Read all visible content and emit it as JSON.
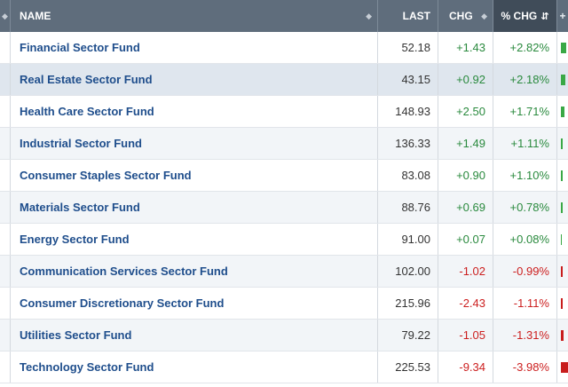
{
  "header": {
    "name": "NAME",
    "last": "LAST",
    "chg": "CHG",
    "pct_chg": "% CHG",
    "sort_icon": "⇵",
    "sort_arrows": "◆",
    "more_icon": "+"
  },
  "colors": {
    "up": "#3aa845",
    "down": "#c81d1d",
    "header_bg": "#5f6d7c",
    "header_active": "#404c59",
    "link": "#1f4e8c"
  },
  "rows": [
    {
      "name": "Financial Sector Fund",
      "last": "52.18",
      "chg": "+1.43",
      "pct": "+2.82%",
      "dir": "up",
      "pct_value": 2.82
    },
    {
      "name": "Real Estate Sector Fund",
      "last": "43.15",
      "chg": "+0.92",
      "pct": "+2.18%",
      "dir": "up",
      "pct_value": 2.18
    },
    {
      "name": "Health Care Sector Fund",
      "last": "148.93",
      "chg": "+2.50",
      "pct": "+1.71%",
      "dir": "up",
      "pct_value": 1.71
    },
    {
      "name": "Industrial Sector Fund",
      "last": "136.33",
      "chg": "+1.49",
      "pct": "+1.11%",
      "dir": "up",
      "pct_value": 1.11
    },
    {
      "name": "Consumer Staples Sector Fund",
      "last": "83.08",
      "chg": "+0.90",
      "pct": "+1.10%",
      "dir": "up",
      "pct_value": 1.1
    },
    {
      "name": "Materials Sector Fund",
      "last": "88.76",
      "chg": "+0.69",
      "pct": "+0.78%",
      "dir": "up",
      "pct_value": 0.78
    },
    {
      "name": "Energy Sector Fund",
      "last": "91.00",
      "chg": "+0.07",
      "pct": "+0.08%",
      "dir": "up",
      "pct_value": 0.08
    },
    {
      "name": "Communication Services Sector Fund",
      "last": "102.00",
      "chg": "-1.02",
      "pct": "-0.99%",
      "dir": "down",
      "pct_value": -0.99
    },
    {
      "name": "Consumer Discretionary Sector Fund",
      "last": "215.96",
      "chg": "-2.43",
      "pct": "-1.11%",
      "dir": "down",
      "pct_value": -1.11
    },
    {
      "name": "Utilities Sector Fund",
      "last": "79.22",
      "chg": "-1.05",
      "pct": "-1.31%",
      "dir": "down",
      "pct_value": -1.31
    },
    {
      "name": "Technology Sector Fund",
      "last": "225.53",
      "chg": "-9.34",
      "pct": "-3.98%",
      "dir": "down",
      "pct_value": -3.98
    }
  ]
}
